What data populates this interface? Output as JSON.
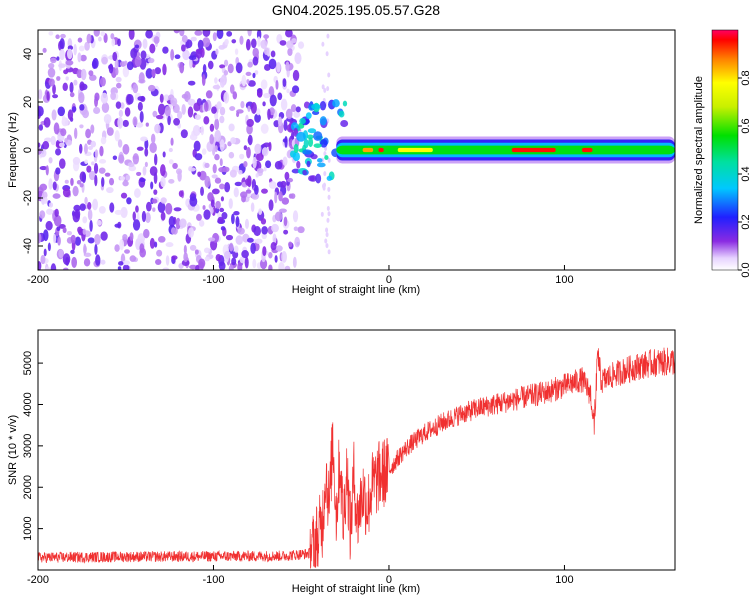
{
  "figure": {
    "title": "GN04.2025.195.05.57.G28"
  },
  "chart_data": [
    {
      "type": "heatmap",
      "xlabel": "Height of straight line (km)",
      "ylabel": "Frequency (Hz)",
      "xlim": [
        -200,
        163
      ],
      "ylim": [
        -50,
        50
      ],
      "xticks": [
        "-200",
        "-100",
        "0",
        "100"
      ],
      "yticks": [
        "-40",
        "-20",
        "0",
        "20",
        "40"
      ],
      "xtick_values": [
        -200,
        -100,
        0,
        100
      ],
      "ytick_values": [
        -40,
        -20,
        0,
        20,
        40
      ],
      "colormap": "rainbow (purple to red)",
      "colorbar": {
        "label": "Normalized spectral amplitude",
        "range": [
          0,
          1
        ],
        "ticks": [
          "0.0",
          "0.2",
          "0.4",
          "0.6",
          "0.8"
        ],
        "tick_values": [
          0.0,
          0.2,
          0.4,
          0.6,
          0.8
        ]
      },
      "features": [
        {
          "description": "scattered noise",
          "x_range": [
            -200,
            -50
          ],
          "y_range": [
            -50,
            50
          ],
          "amplitude": 0.1
        },
        {
          "description": "signal onset spread",
          "x_range": [
            -55,
            -25
          ],
          "y_range": [
            -12,
            20
          ],
          "amplitude": 0.35
        },
        {
          "description": "tone band",
          "x_range": [
            -30,
            163
          ],
          "y_center": 0,
          "half_width": 4,
          "amplitude_core": 0.55,
          "amplitude_peak": 0.95
        }
      ],
      "grid": false
    },
    {
      "type": "line",
      "xlabel": "Height of straight line (km)",
      "ylabel": "SNR (10 * v/v)",
      "xlim": [
        -200,
        163
      ],
      "ylim": [
        0,
        5800
      ],
      "xticks": [
        "-200",
        "-100",
        "0",
        "100"
      ],
      "yticks": [
        "1000",
        "2000",
        "3000",
        "4000",
        "5000"
      ],
      "xtick_values": [
        -200,
        -100,
        0,
        100
      ],
      "ytick_values": [
        1000,
        2000,
        3000,
        4000,
        5000
      ],
      "series": [
        {
          "color": "#f03030",
          "x": [
            -200,
            -150,
            -100,
            -60,
            -45,
            -38,
            -36,
            -34,
            -32,
            -30,
            -28,
            -26,
            -24,
            -22,
            -20,
            -18,
            -15,
            -12,
            -10,
            -8,
            -5,
            0,
            5,
            10,
            20,
            30,
            40,
            50,
            60,
            70,
            80,
            90,
            100,
            110,
            115,
            117,
            119,
            121,
            125,
            130,
            140,
            150,
            163
          ],
          "y": [
            300,
            320,
            330,
            340,
            400,
            1100,
            2400,
            1500,
            3200,
            1300,
            2700,
            1100,
            2500,
            900,
            2300,
            1200,
            1900,
            1500,
            2000,
            2100,
            2300,
            2400,
            2700,
            2950,
            3300,
            3550,
            3750,
            3900,
            4000,
            4100,
            4200,
            4300,
            4450,
            4600,
            4250,
            3400,
            5300,
            4550,
            4650,
            4750,
            4900,
            5000,
            5050
          ],
          "noise": 220
        }
      ],
      "grid": false
    }
  ]
}
